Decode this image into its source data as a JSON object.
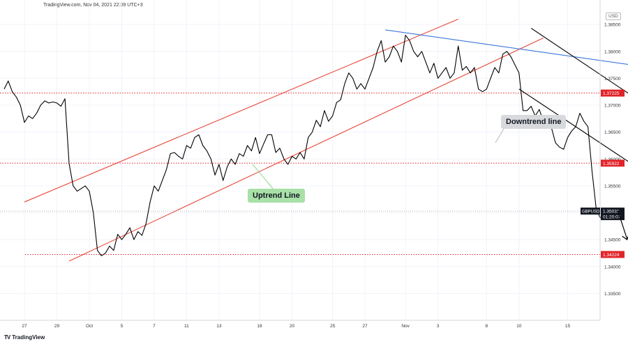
{
  "header": {
    "watermark_text": "TradingView.com, Nov 04, 2021 22:39 UTC+3"
  },
  "footer": {
    "logo_text": "TradingView"
  },
  "axis": {
    "unit_label": "USD"
  },
  "colors": {
    "price_line": "#000000",
    "channel_lines": "#e8473a",
    "resistance_line": "#3a77d8",
    "downtrend_lines": "#000000",
    "level_lines": "#e0242a",
    "uptrend_callout_bg": "#a8e0a8",
    "downtrend_callout_bg": "#d7d9dc",
    "grid": "#f0f3fa"
  },
  "chart_data": {
    "type": "line",
    "symbol": "GBPUSD",
    "grid": true,
    "y_axis_position": "right",
    "ylim": [
      1.33,
      1.388
    ],
    "y_ticks": [
      "1.38500",
      "1.38000",
      "1.37500",
      "1.37000",
      "1.36500",
      "1.36000",
      "1.35500",
      "1.35000",
      "1.34500",
      "1.34000",
      "1.33500"
    ],
    "x_tick_labels": [
      "27",
      "29",
      "Oct",
      "5",
      "7",
      "11",
      "13",
      "18",
      "20",
      "25",
      "27",
      "Nov",
      "3",
      "8",
      "10",
      "15"
    ],
    "x_tick_index": [
      5,
      13,
      21,
      29,
      37,
      45,
      53,
      63,
      71,
      81,
      89,
      99,
      107,
      119,
      127,
      139
    ],
    "x_range": [
      0,
      147
    ],
    "series": [
      {
        "values": [
          1.373,
          1.3745,
          1.3725,
          1.3715,
          1.37,
          1.3668,
          1.368,
          1.3675,
          1.3685,
          1.37,
          1.3708,
          1.3704,
          1.3706,
          1.3704,
          1.3698,
          1.3712,
          1.3592,
          1.355,
          1.354,
          1.3545,
          1.355,
          1.354,
          1.35,
          1.343,
          1.342,
          1.3425,
          1.3438,
          1.343,
          1.346,
          1.345,
          1.346,
          1.3472,
          1.345,
          1.3465,
          1.3458,
          1.348,
          1.352,
          1.355,
          1.354,
          1.356,
          1.358,
          1.361,
          1.3612,
          1.3605,
          1.36,
          1.3625,
          1.362,
          1.364,
          1.3645,
          1.3625,
          1.3615,
          1.36,
          1.357,
          1.359,
          1.356,
          1.3585,
          1.36,
          1.359,
          1.361,
          1.3605,
          1.3625,
          1.3615,
          1.364,
          1.361,
          1.3628,
          1.3645,
          1.3645,
          1.3612,
          1.362,
          1.36,
          1.359,
          1.3605,
          1.36,
          1.3612,
          1.36,
          1.364,
          1.365,
          1.3672,
          1.366,
          1.369,
          1.367,
          1.368,
          1.3705,
          1.371,
          1.374,
          1.376,
          1.375,
          1.373,
          1.374,
          1.373,
          1.375,
          1.377,
          1.38,
          1.382,
          1.378,
          1.379,
          1.381,
          1.38,
          1.378,
          1.383,
          1.382,
          1.38,
          1.379,
          1.38,
          1.378,
          1.376,
          1.3778,
          1.375,
          1.376,
          1.377,
          1.375,
          1.376,
          1.381,
          1.3765,
          1.3772,
          1.376,
          1.377,
          1.373,
          1.3725,
          1.373,
          1.375,
          1.377,
          1.376,
          1.3795,
          1.38,
          1.379,
          1.3775,
          1.376,
          1.369,
          1.369,
          1.3698,
          1.368,
          1.3692,
          1.367,
          1.366,
          1.3658,
          1.363,
          1.3622,
          1.3618,
          1.364,
          1.3652,
          1.366,
          1.3685,
          1.367,
          1.366,
          1.3578,
          1.351,
          1.349,
          1.35,
          1.3503
        ]
      }
    ],
    "levels": [
      {
        "value": 1.37225,
        "label": "1.37225"
      },
      {
        "value": 1.35922,
        "label": "1.35922"
      },
      {
        "value": 1.34224,
        "label": "1.34224"
      }
    ],
    "current_price": {
      "value": 1.35031,
      "label": "1.35031",
      "countdown": "01:20:07",
      "symbol_tag": "GBPUSD"
    },
    "annotations": {
      "uptrend_label": "Uptrend Line",
      "downtrend_label": "Downtrend line"
    },
    "trend_lines": [
      {
        "kind": "channel-upper",
        "from": [
          5,
          1.352
        ],
        "to": [
          112,
          1.386
        ]
      },
      {
        "kind": "channel-lower",
        "from": [
          16,
          1.341
        ],
        "to": [
          133,
          1.3825
        ]
      },
      {
        "kind": "resistance",
        "from": [
          94,
          1.384
        ],
        "to": [
          164,
          1.3765
        ]
      },
      {
        "kind": "downtrend-upper",
        "from": [
          130,
          1.3843
        ],
        "to": [
          194,
          1.352
        ]
      },
      {
        "kind": "downtrend-lower",
        "from": [
          127,
          1.373
        ],
        "to": [
          191,
          1.341
        ]
      }
    ]
  }
}
